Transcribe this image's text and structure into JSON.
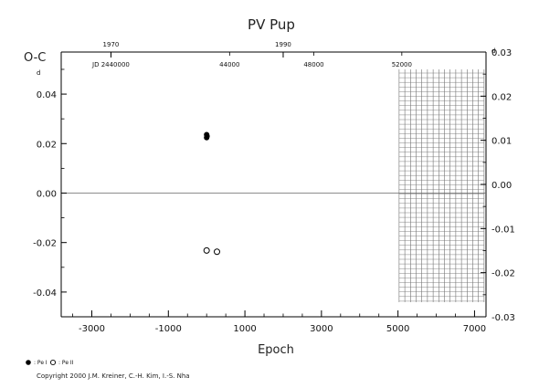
{
  "chart_data": {
    "type": "scatter",
    "title": "PV  Pup",
    "xlabel": "Epoch",
    "ylabel": "O-C",
    "xlim": [
      -3800,
      7300
    ],
    "ylim": [
      -0.05,
      0.057
    ],
    "right_ylim": [
      -0.03,
      0.03
    ],
    "x_ticks": [
      -3000,
      -1000,
      1000,
      3000,
      5000,
      7000
    ],
    "y_ticks": [
      0.04,
      0.02,
      0.0,
      -0.02,
      -0.04
    ],
    "y_tick_labels": [
      "0.04",
      "0.02",
      "0.00",
      "-0.02",
      "-0.04"
    ],
    "left_unit_mark": "d",
    "right_y_ticks": [
      0.03,
      0.02,
      0.01,
      0.0,
      -0.01,
      -0.02,
      -0.03
    ],
    "right_y_tick_labels": [
      "0.03",
      "0.02",
      "0.01",
      "0.00",
      "-0.01",
      "-0.02",
      "-0.03"
    ],
    "right_unit_mark": "d",
    "top_year_ticks": [
      {
        "label": "1970",
        "x": -2500
      },
      {
        "label": "1990",
        "x": 2000
      }
    ],
    "top_jd_ticks": [
      {
        "label": "JD 2440000",
        "x": -2500
      },
      {
        "label": "44000",
        "x": 600
      },
      {
        "label": "48000",
        "x": 2800
      },
      {
        "label": "52000",
        "x": 5100
      }
    ],
    "grid_region": {
      "x_start": 5030,
      "x_end": 7250
    },
    "series": [
      {
        "name": "Pe I",
        "marker": "filled",
        "color": "#000000",
        "points": [
          {
            "x": 0,
            "y": 0.0236
          },
          {
            "x": 0,
            "y": 0.0224
          },
          {
            "x": 10,
            "y": 0.023
          }
        ]
      },
      {
        "name": "Pe II",
        "marker": "open",
        "color": "#000000",
        "points": [
          {
            "x": 0,
            "y": -0.0232
          },
          {
            "x": 270,
            "y": -0.0237
          }
        ]
      }
    ],
    "legend": [
      {
        "marker": "filled",
        "label": ": Pe I"
      },
      {
        "marker": "open",
        "label": ": Pe II"
      }
    ]
  },
  "copyright": "Copyright 2000 J.M. Kreiner, C.-H. Kim, I.-S. Nha"
}
